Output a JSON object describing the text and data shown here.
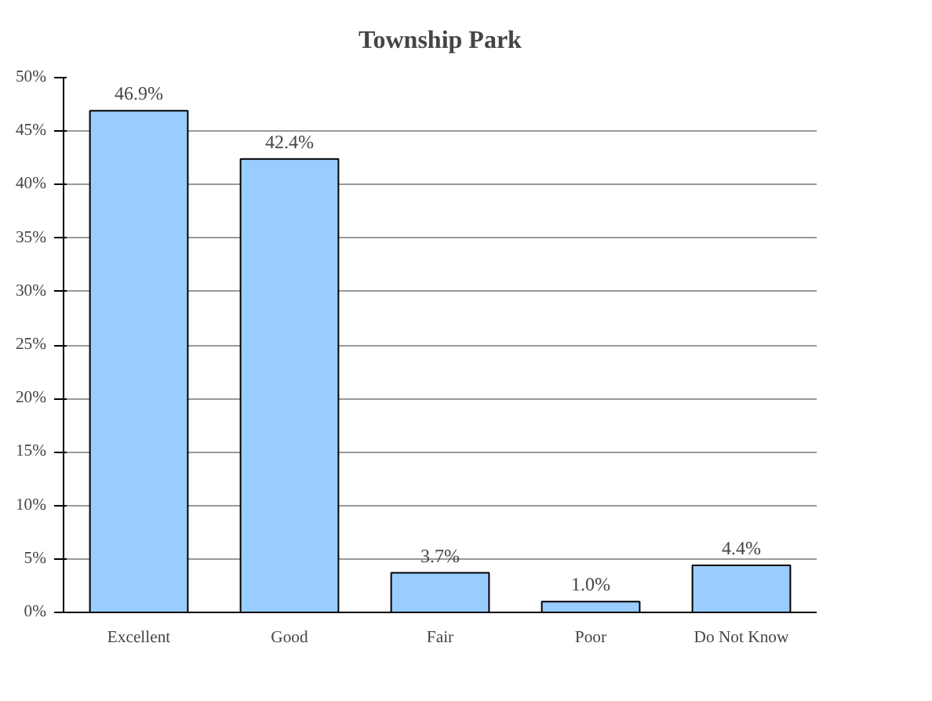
{
  "chart_data": {
    "type": "bar",
    "title": "Township Park",
    "categories": [
      "Excellent",
      "Good",
      "Fair",
      "Poor",
      "Do Not Know"
    ],
    "values": [
      46.9,
      42.4,
      3.7,
      1.0,
      4.4
    ],
    "value_labels": [
      "46.9%",
      "42.4%",
      "3.7%",
      "1.0%",
      "4.4%"
    ],
    "color": "#99ccff",
    "ylim": [
      0,
      50
    ],
    "yticks": [
      {
        "value": 0,
        "label": "0%"
      },
      {
        "value": 5,
        "label": "5%"
      },
      {
        "value": 10,
        "label": "10%"
      },
      {
        "value": 15,
        "label": "15%"
      },
      {
        "value": 20,
        "label": "20%"
      },
      {
        "value": 25,
        "label": "25%"
      },
      {
        "value": 30,
        "label": "30%"
      },
      {
        "value": 35,
        "label": "35%"
      },
      {
        "value": 40,
        "label": "40%"
      },
      {
        "value": 45,
        "label": "45%"
      },
      {
        "value": 50,
        "label": "50%"
      }
    ],
    "grid": "y"
  }
}
